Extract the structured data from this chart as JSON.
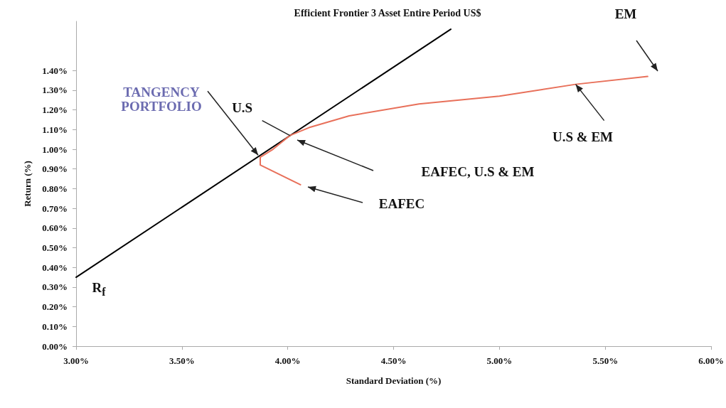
{
  "chart_data": {
    "type": "line",
    "title": "Efficient Frontier 3 Asset Entire Period US$",
    "xlabel": "Standard Deviation (%)",
    "ylabel": "Return (%)",
    "series": [
      {
        "color": "#000000",
        "x": [
          3.0,
          4.77
        ],
        "values": [
          0.35,
          1.61
        ]
      },
      {
        "color": "#e8705a",
        "x": [
          4.06,
          3.87,
          3.87,
          3.93,
          4.01,
          4.1,
          4.29,
          4.62,
          5.0,
          5.36,
          5.7
        ],
        "values": [
          0.82,
          0.92,
          0.96,
          1.0,
          1.07,
          1.11,
          1.17,
          1.23,
          1.27,
          1.33,
          1.37
        ]
      }
    ],
    "xlim": [
      3.0,
      6.0
    ],
    "xticks": [
      {
        "value": 3.0,
        "label": "3.00%"
      },
      {
        "value": 3.5,
        "label": "3.50%"
      },
      {
        "value": 4.0,
        "label": "4.00%"
      },
      {
        "value": 4.5,
        "label": "4.50%"
      },
      {
        "value": 5.0,
        "label": "5.00%"
      },
      {
        "value": 5.5,
        "label": "5.50%"
      },
      {
        "value": 6.0,
        "label": "6.00%"
      }
    ],
    "ylim": [
      0,
      1.65
    ],
    "yticks": [
      {
        "value": 0,
        "label": "0.00%"
      },
      {
        "value": 0.1,
        "label": "0.10%"
      },
      {
        "value": 0.2,
        "label": "0.20%"
      },
      {
        "value": 0.3,
        "label": "0.30%"
      },
      {
        "value": 0.4,
        "label": "0.40%"
      },
      {
        "value": 0.5,
        "label": "0.50%"
      },
      {
        "value": 0.6,
        "label": "0.60%"
      },
      {
        "value": 0.7,
        "label": "0.70%"
      },
      {
        "value": 0.8,
        "label": "0.80%"
      },
      {
        "value": 0.9,
        "label": "0.90%"
      },
      {
        "value": 1.0,
        "label": "1.00%"
      },
      {
        "value": 1.1,
        "label": "1.10%"
      },
      {
        "value": 1.2,
        "label": "1.20%"
      },
      {
        "value": 1.3,
        "label": "1.30%"
      },
      {
        "value": 1.4,
        "label": "1.40%"
      }
    ],
    "annotations": [
      {
        "text": "TANGENCY PORTFOLIO",
        "x": 3.86,
        "y": 0.97
      },
      {
        "text": "U.S",
        "x": 4.01,
        "y": 1.07
      },
      "EAFEC, U.S & EM",
      "EAFEC",
      {
        "text": "U.S & EM",
        "x": 5.36,
        "y": 1.33
      },
      "EM",
      "R$_{f}$"
    ],
    "grid": false,
    "marker": "none",
    "line_style": "solid"
  }
}
